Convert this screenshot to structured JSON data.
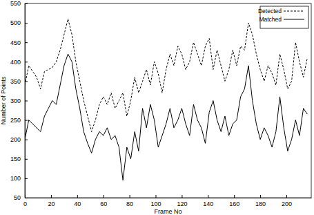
{
  "chart_data": {
    "type": "line",
    "x_label": "Frame No",
    "y_label": "Number of Points",
    "x": [
      0,
      3,
      6,
      9,
      12,
      15,
      18,
      21,
      24,
      27,
      30,
      33,
      36,
      39,
      42,
      45,
      48,
      51,
      54,
      57,
      60,
      63,
      66,
      69,
      72,
      75,
      78,
      81,
      84,
      87,
      90,
      93,
      96,
      99,
      102,
      105,
      108,
      111,
      114,
      117,
      120,
      123,
      126,
      129,
      132,
      135,
      138,
      141,
      144,
      147,
      150,
      153,
      156,
      159,
      162,
      165,
      168,
      171,
      174,
      177,
      180,
      183,
      186,
      189,
      192,
      195,
      198,
      201,
      204,
      207,
      210,
      213,
      216
    ],
    "series": [
      {
        "name": "Detected",
        "color": "#000000",
        "line_style": "dashed",
        "values": [
          340,
          390,
          375,
          360,
          330,
          375,
          380,
          385,
          400,
          430,
          470,
          510,
          470,
          400,
          350,
          300,
          260,
          220,
          250,
          290,
          310,
          290,
          320,
          280,
          300,
          320,
          260,
          300,
          360,
          320,
          350,
          380,
          340,
          400,
          370,
          320,
          380,
          420,
          390,
          440,
          420,
          380,
          400,
          450,
          420,
          390,
          440,
          460,
          380,
          430,
          390,
          350,
          380,
          430,
          390,
          440,
          430,
          500,
          470,
          420,
          380,
          350,
          390,
          370,
          340,
          420,
          380,
          330,
          350,
          450,
          400,
          360,
          410
        ]
      },
      {
        "name": "Matched",
        "color": "#000000",
        "line_style": "solid",
        "values": [
          200,
          250,
          240,
          230,
          220,
          260,
          280,
          300,
          290,
          340,
          390,
          420,
          400,
          330,
          280,
          220,
          190,
          165,
          200,
          220,
          210,
          230,
          200,
          210,
          180,
          95,
          180,
          150,
          220,
          170,
          280,
          230,
          290,
          250,
          180,
          210,
          240,
          280,
          230,
          250,
          280,
          240,
          210,
          290,
          250,
          230,
          190,
          270,
          300,
          250,
          220,
          260,
          210,
          240,
          250,
          310,
          330,
          390,
          300,
          240,
          200,
          230,
          210,
          180,
          220,
          310,
          230,
          170,
          200,
          250,
          210,
          280,
          265
        ]
      }
    ],
    "xlim": [
      0,
      219
    ],
    "xticks": [
      0,
      20,
      40,
      60,
      80,
      100,
      120,
      140,
      160,
      180,
      200
    ],
    "ylim": [
      50,
      550
    ],
    "yticks": [
      50,
      100,
      150,
      200,
      250,
      300,
      350,
      400,
      450,
      500,
      550
    ],
    "grid": false,
    "legend": "upper right"
  }
}
